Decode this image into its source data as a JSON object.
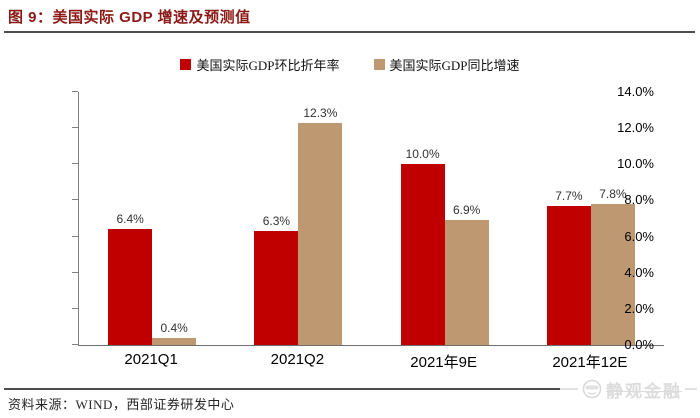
{
  "header": {
    "title": "图 9：美国实际 GDP 增速及预测值"
  },
  "chart_data": {
    "type": "bar",
    "title": "图 9：美国实际 GDP 增速及预测值",
    "categories": [
      "2021Q1",
      "2021Q2",
      "2021年9E",
      "2021年12E"
    ],
    "series": [
      {
        "name": "美国实际GDP环比折年率",
        "color": "#c00000",
        "values": [
          6.4,
          6.3,
          10.0,
          7.7
        ],
        "labels": [
          "6.4%",
          "6.3%",
          "10.0%",
          "7.7%"
        ]
      },
      {
        "name": "美国实际GDP同比增速",
        "color": "#be9870",
        "values": [
          0.4,
          12.3,
          6.9,
          7.8
        ],
        "labels": [
          "0.4%",
          "12.3%",
          "6.9%",
          "7.8%"
        ]
      }
    ],
    "ylim": [
      0,
      14
    ],
    "y_tick_step": 2,
    "y_ticks": [
      "0.0%",
      "2.0%",
      "4.0%",
      "6.0%",
      "8.0%",
      "10.0%",
      "12.0%",
      "14.0%"
    ],
    "legend_position": "top",
    "grid": false
  },
  "footer": {
    "source": "资料来源：WIND，西部证券研发中心",
    "watermark": "静观金融"
  },
  "colors": {
    "series_red": "#c00000",
    "series_tan": "#be9870",
    "title_red": "#8b1a16",
    "axis_gray": "#808080",
    "rule_gray": "#4d4d4d",
    "watermark_gray": "#dcdcdc"
  }
}
